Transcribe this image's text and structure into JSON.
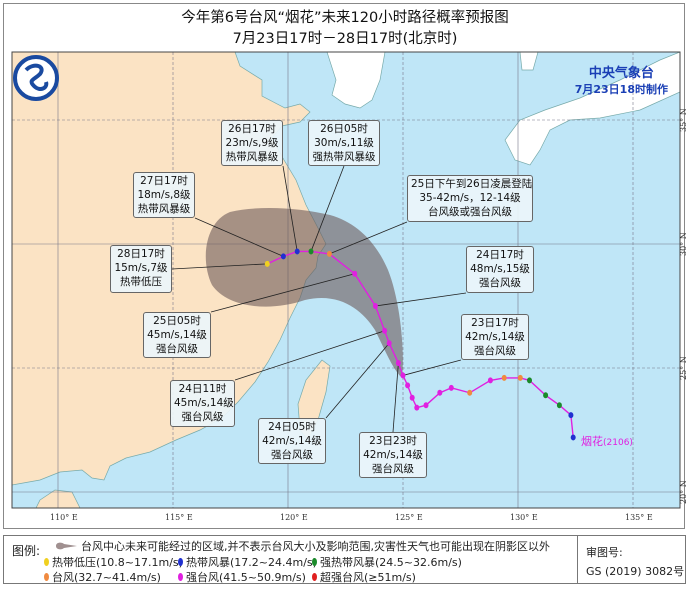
{
  "header": {
    "title": "今年第6号台风“烟花”未来120小时路径概率预报图",
    "subtitle": "7月23日17时－28日17时(北京时)"
  },
  "issuer": {
    "name": "中央气象台",
    "made_at": "7月23日18时制作"
  },
  "map": {
    "lon_labels": [
      "110° E",
      "115° E",
      "120° E",
      "125° E",
      "130° E",
      "135° E"
    ],
    "lat_labels": [
      "35° N",
      "30° N",
      "25° N",
      "20° N"
    ],
    "colors": {
      "sea": "#bfe6f7",
      "china_land": "#fbe3c4",
      "foreign_land": "#ffffff",
      "cone": "#6e5a5a"
    },
    "typhoon_label": "烟花",
    "typhoon_code": "(2106)"
  },
  "track": {
    "past": [
      {
        "lon": 132.4,
        "lat": 22.2,
        "cat": "ts"
      },
      {
        "lon": 132.3,
        "lat": 23.1,
        "cat": "ts"
      },
      {
        "lon": 131.8,
        "lat": 23.5,
        "cat": "sts"
      },
      {
        "lon": 131.2,
        "lat": 23.9,
        "cat": "sts"
      },
      {
        "lon": 130.5,
        "lat": 24.5,
        "cat": "sts"
      },
      {
        "lon": 130.1,
        "lat": 24.6,
        "cat": "ty"
      },
      {
        "lon": 129.4,
        "lat": 24.6,
        "cat": "ty"
      },
      {
        "lon": 128.8,
        "lat": 24.5,
        "cat": "sty"
      },
      {
        "lon": 127.9,
        "lat": 24.0,
        "cat": "ty"
      },
      {
        "lon": 127.1,
        "lat": 24.2,
        "cat": "sty"
      },
      {
        "lon": 126.6,
        "lat": 24.0,
        "cat": "sty"
      },
      {
        "lon": 126.0,
        "lat": 23.5,
        "cat": "sty"
      },
      {
        "lon": 125.6,
        "lat": 23.4,
        "cat": "sty"
      },
      {
        "lon": 125.4,
        "lat": 23.8,
        "cat": "sty"
      },
      {
        "lon": 125.2,
        "lat": 24.3,
        "cat": "sty"
      },
      {
        "lon": 125.0,
        "lat": 24.7,
        "cat": "sty"
      }
    ],
    "forecast": [
      {
        "time": "23日17时",
        "lon": 125.0,
        "lat": 24.7,
        "cat": "sty",
        "lines": [
          "23日17时",
          "42m/s,14级",
          "强台风级"
        ]
      },
      {
        "time": "23日23时",
        "lon": 124.8,
        "lat": 25.2,
        "cat": "sty",
        "lines": [
          "23日23时",
          "42m/s,14级",
          "强台风级"
        ]
      },
      {
        "time": "24日05时",
        "lon": 124.4,
        "lat": 26.0,
        "cat": "sty",
        "lines": [
          "24日05时",
          "42m/s,14级",
          "强台风级"
        ]
      },
      {
        "time": "24日11时",
        "lon": 124.2,
        "lat": 26.5,
        "cat": "sty",
        "lines": [
          "24日11时",
          "45m/s,14级",
          "强台风级"
        ]
      },
      {
        "time": "24日17时",
        "lon": 123.8,
        "lat": 27.5,
        "cat": "sty",
        "lines": [
          "24日17时",
          "48m/s,15级",
          "强台风级"
        ]
      },
      {
        "time": "25日05时",
        "lon": 122.9,
        "lat": 28.8,
        "cat": "sty",
        "lines": [
          "25日05时",
          "45m/s,14级",
          "强台风级"
        ]
      },
      {
        "time": "25日下午到26日凌晨登陆",
        "lon": 121.8,
        "lat": 29.6,
        "cat": "ty",
        "lines": [
          "25日下午到26日凌晨登陆",
          "35-42m/s，12-14级",
          "台风级或强台风级"
        ]
      },
      {
        "time": "26日05时",
        "lon": 121.0,
        "lat": 29.7,
        "cat": "sts",
        "lines": [
          "26日05时",
          "30m/s,11级",
          "强热带风暴级"
        ]
      },
      {
        "time": "26日17时",
        "lon": 120.4,
        "lat": 29.7,
        "cat": "ts",
        "lines": [
          "26日17时",
          "23m/s,9级",
          "热带风暴级"
        ]
      },
      {
        "time": "27日17时",
        "lon": 119.8,
        "lat": 29.5,
        "cat": "ts",
        "lines": [
          "27日17时",
          "18m/s,8级",
          "热带风暴级"
        ]
      },
      {
        "time": "28日17时",
        "lon": 119.1,
        "lat": 29.2,
        "cat": "td",
        "lines": [
          "28日17时",
          "15m/s,7级",
          "热带低压"
        ]
      }
    ]
  },
  "legend": {
    "title": "图例:",
    "cone_note": "台风中心未来可能经过的区域,并不表示台风大小及影响范围,灾害性天气也可能出现在阴影区以外",
    "items": [
      {
        "key": "td",
        "label": "热带低压(10.8~17.1m/s)",
        "color": "#f0d020"
      },
      {
        "key": "ts",
        "label": "热带风暴(17.2~24.4m/s)",
        "color": "#2030d0"
      },
      {
        "key": "sts",
        "label": "强热带风暴(24.5~32.6m/s)",
        "color": "#1a8a2a"
      },
      {
        "key": "ty",
        "label": "台风(32.7~41.4m/s)",
        "color": "#f08a40"
      },
      {
        "key": "sty",
        "label": "强台风(41.5~50.9m/s)",
        "color": "#e020e0"
      },
      {
        "key": "super",
        "label": "超强台风(≥51m/s)",
        "color": "#e02020"
      }
    ],
    "approval_label": "审图号:",
    "approval_number": "GS (2019) 3082号"
  }
}
